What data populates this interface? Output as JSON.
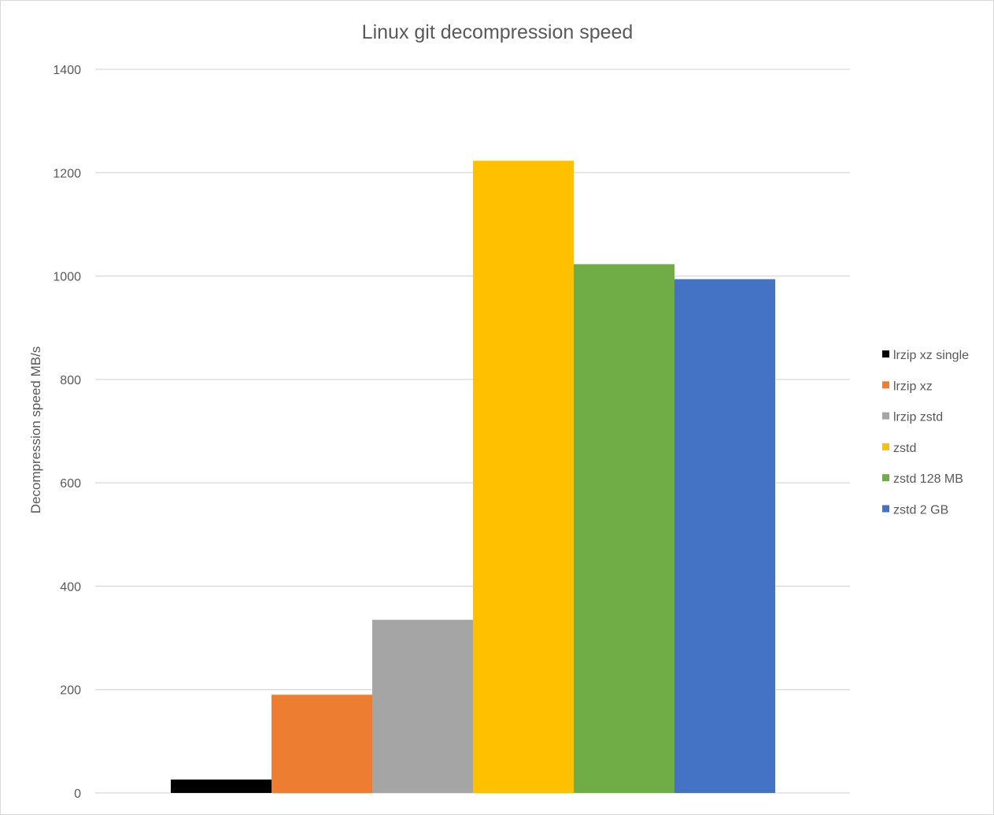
{
  "chart_data": {
    "type": "bar",
    "title": "Linux git decompression  speed",
    "xlabel": "",
    "ylabel": "Decompression speed MB/s",
    "ylim": [
      0,
      1400
    ],
    "yticks": [
      0,
      200,
      400,
      600,
      800,
      1000,
      1200,
      1400
    ],
    "grid": true,
    "legend_position": "right",
    "categories": [
      ""
    ],
    "series": [
      {
        "name": "lrzip xz single",
        "values": [
          26
        ],
        "color": "#000000"
      },
      {
        "name": "lrzip xz",
        "values": [
          190
        ],
        "color": "#ED7D31"
      },
      {
        "name": "lrzip zstd",
        "values": [
          335
        ],
        "color": "#A5A5A5"
      },
      {
        "name": "zstd",
        "values": [
          1223
        ],
        "color": "#FFC000"
      },
      {
        "name": "zstd 128 MB",
        "values": [
          1023
        ],
        "color": "#70AD47"
      },
      {
        "name": "zstd 2 GB",
        "values": [
          994
        ],
        "color": "#4472C4"
      }
    ]
  }
}
